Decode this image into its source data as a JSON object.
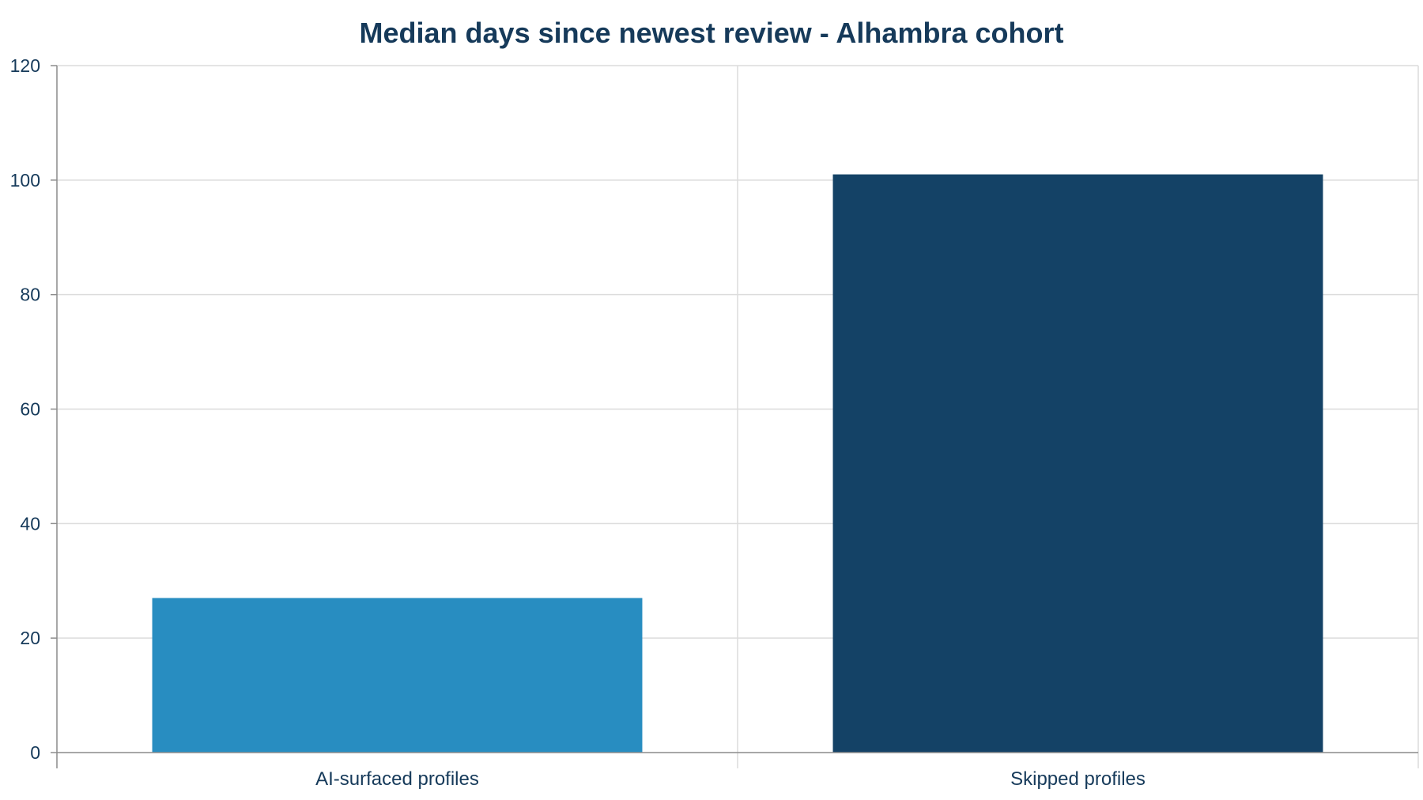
{
  "colors": {
    "text": "#163a5a",
    "grid": "#dcdcdc",
    "axis": "#8c8c8c",
    "bar_light": "#288dc1",
    "bar_dark": "#144266"
  },
  "chart_data": {
    "type": "bar",
    "title": "Median days since newest review - Alhambra cohort",
    "xlabel": "",
    "ylabel": "",
    "categories": [
      "AI-surfaced profiles",
      "Skipped profiles"
    ],
    "values": [
      27,
      101
    ],
    "bar_colors": [
      "#288dc1",
      "#144266"
    ],
    "ylim": [
      0,
      120
    ],
    "yticks": [
      0,
      20,
      40,
      60,
      80,
      100,
      120
    ],
    "grid": true,
    "legend": "none"
  }
}
